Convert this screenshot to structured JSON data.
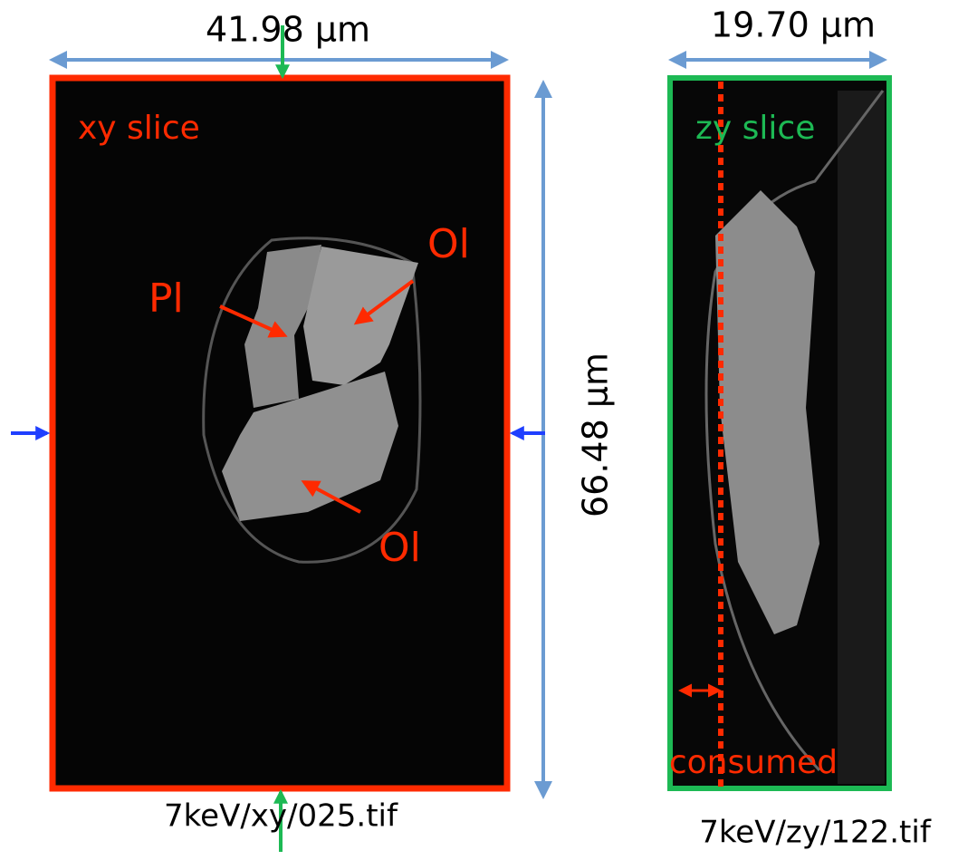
{
  "left_panel": {
    "width_label": "41.98 µm",
    "height_label": "66.48 µm",
    "slice_label": "xy slice",
    "minerals": [
      "Pl",
      "Ol",
      "Ol"
    ],
    "caption": "7keV/xy/025.tif"
  },
  "right_panel": {
    "width_label": "19.70 µm",
    "slice_label": "zy slice",
    "annotation": "consumed",
    "caption": "7keV/zy/122.tif"
  }
}
